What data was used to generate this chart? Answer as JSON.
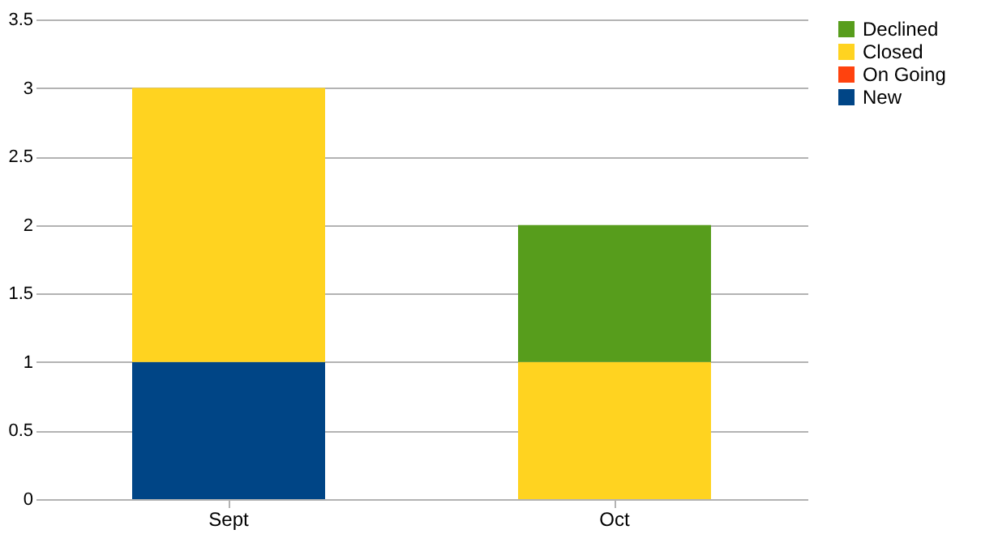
{
  "chart_data": {
    "type": "bar",
    "stacked": true,
    "categories": [
      "Sept",
      "Oct"
    ],
    "series": [
      {
        "name": "New",
        "color": "#004586",
        "values": [
          1,
          0
        ]
      },
      {
        "name": "On Going",
        "color": "#ff420e",
        "values": [
          0,
          0
        ]
      },
      {
        "name": "Closed",
        "color": "#ffd320",
        "values": [
          2,
          1
        ]
      },
      {
        "name": "Declined",
        "color": "#579d1c",
        "values": [
          0,
          1
        ]
      }
    ],
    "ylim": [
      0,
      3.5
    ],
    "yticks": [
      0,
      0.5,
      1,
      1.5,
      2,
      2.5,
      3,
      3.5
    ],
    "grid": "y",
    "legend": "right"
  }
}
